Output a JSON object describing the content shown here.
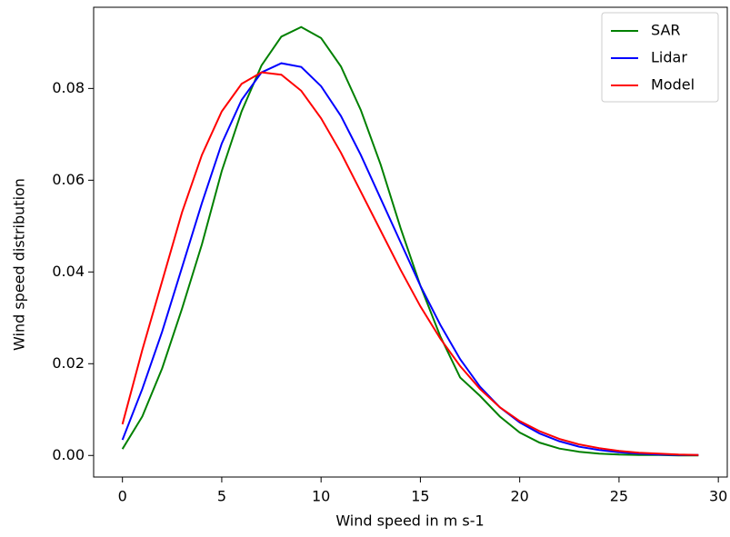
{
  "chart_data": {
    "type": "line",
    "xlabel": "Wind speed in m s-1",
    "ylabel": "Wind speed distribution",
    "x": [
      0,
      1,
      2,
      3,
      4,
      5,
      6,
      7,
      8,
      9,
      10,
      11,
      12,
      13,
      14,
      15,
      16,
      17,
      18,
      19,
      20,
      21,
      22,
      23,
      24,
      25,
      26,
      27,
      28,
      29
    ],
    "series": [
      {
        "name": "SAR",
        "color": "#008000",
        "values": [
          0.0014,
          0.0085,
          0.019,
          0.032,
          0.046,
          0.062,
          0.075,
          0.085,
          0.0913,
          0.0934,
          0.091,
          0.0848,
          0.0753,
          0.0634,
          0.0496,
          0.037,
          0.026,
          0.017,
          0.013,
          0.0085,
          0.005,
          0.0028,
          0.0015,
          0.0008,
          0.0004,
          0.0002,
          0.0001,
          0.0001,
          0.0,
          0.0
        ]
      },
      {
        "name": "Lidar",
        "color": "#0000ff",
        "values": [
          0.0034,
          0.0145,
          0.027,
          0.041,
          0.055,
          0.068,
          0.0775,
          0.0835,
          0.0855,
          0.0847,
          0.0805,
          0.074,
          0.0655,
          0.056,
          0.0465,
          0.037,
          0.0285,
          0.021,
          0.015,
          0.0105,
          0.0072,
          0.0048,
          0.0031,
          0.0019,
          0.0012,
          0.0007,
          0.0004,
          0.0002,
          0.0001,
          0.0001
        ]
      },
      {
        "name": "Model",
        "color": "#ff0000",
        "values": [
          0.0068,
          0.023,
          0.038,
          0.053,
          0.0655,
          0.075,
          0.081,
          0.0835,
          0.083,
          0.0795,
          0.0735,
          0.066,
          0.0575,
          0.049,
          0.0405,
          0.0325,
          0.0255,
          0.0195,
          0.0145,
          0.0105,
          0.0075,
          0.0053,
          0.0036,
          0.0024,
          0.0016,
          0.001,
          0.0006,
          0.0004,
          0.0002,
          0.0001
        ]
      }
    ],
    "xlim": [
      -1.45,
      30.45
    ],
    "xticks": [
      0,
      5,
      10,
      15,
      20,
      25,
      30
    ],
    "ylim": [
      -0.0047,
      0.0977
    ],
    "yticks": [
      {
        "value": 0,
        "label": "0.00"
      },
      {
        "value": 0.02,
        "label": "0.02"
      },
      {
        "value": 0.04,
        "label": "0.04"
      },
      {
        "value": 0.06,
        "label": "0.06"
      },
      {
        "value": 0.08,
        "label": "0.08"
      }
    ],
    "legend": "upper right"
  }
}
